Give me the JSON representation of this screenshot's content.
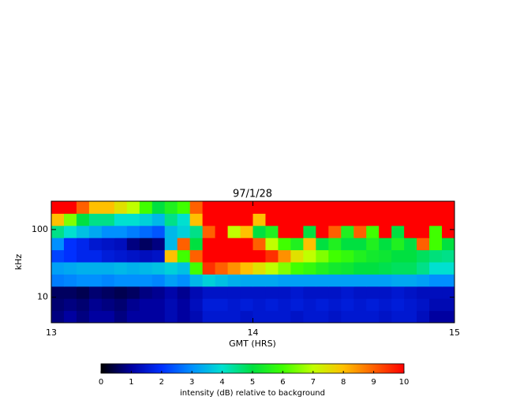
{
  "chart_data": {
    "type": "spectrogram",
    "title": "97/1/28",
    "xlabel": "GMT (HRS)",
    "ylabel": "kHz",
    "xlim": [
      13,
      15
    ],
    "xticks": [
      13,
      14,
      15
    ],
    "ylim": [
      4.2,
      262
    ],
    "yticks": [
      10,
      100
    ],
    "yscale": "log",
    "colormap": [
      "#000000",
      "#0000a0",
      "#0030ff",
      "#0090ff",
      "#00e0d0",
      "#00e040",
      "#40ff00",
      "#c0ff00",
      "#ffc000",
      "#ff6000",
      "#ff0000"
    ],
    "colorbar_label": "intensity (dB) relative to background",
    "colorbar_lim": [
      0,
      10
    ],
    "colorbar_ticks": [
      0,
      1,
      2,
      3,
      4,
      5,
      6,
      7,
      8,
      9,
      10
    ],
    "values": [
      [
        0.8,
        1,
        0.8,
        1,
        1,
        0.8,
        1,
        1,
        1,
        1.2,
        1,
        1.2,
        1.5,
        1.5,
        1.5,
        1.4,
        1.5,
        1.5,
        1.5,
        1.4,
        1.5,
        1.5,
        1.4,
        1.5,
        1.5,
        1.5,
        1.4,
        1.5,
        1.5,
        1.3,
        1,
        1
      ],
      [
        0.7,
        0.8,
        0.7,
        0.9,
        0.8,
        0.7,
        0.9,
        1,
        1,
        1.2,
        1,
        1.3,
        1.6,
        1.6,
        1.5,
        1.6,
        1.5,
        1.6,
        1.5,
        1.6,
        1.5,
        1.6,
        1.5,
        1.6,
        1.5,
        1.6,
        1.5,
        1.6,
        1.5,
        1.4,
        1.2,
        1.2
      ],
      [
        0.6,
        0.6,
        0.5,
        0.7,
        0.6,
        0.5,
        0.6,
        0.8,
        0.9,
        1.1,
        0.9,
        1.2,
        1.4,
        1.4,
        1.4,
        1.4,
        1.4,
        1.4,
        1.4,
        1.5,
        1.4,
        1.4,
        1.4,
        1.5,
        1.4,
        1.4,
        1.4,
        1.5,
        1.4,
        1.3,
        1.3,
        1.3
      ],
      [
        2.8,
        2.9,
        3,
        3,
        2.9,
        3,
        3,
        3,
        2.9,
        3.2,
        3,
        3.5,
        3.8,
        3.6,
        3.4,
        3.3,
        3.3,
        3.3,
        3.2,
        3.2,
        3.2,
        3.2,
        3.2,
        3.2,
        3.2,
        3.2,
        3.2,
        3.3,
        3.3,
        3.2,
        3,
        3
      ],
      [
        3.2,
        3.3,
        3.4,
        3.4,
        3.4,
        3.5,
        3.4,
        3.5,
        3.6,
        3.8,
        3.6,
        6,
        9.5,
        9,
        8.5,
        8,
        7.5,
        7,
        6.5,
        6,
        5.8,
        5.5,
        5.3,
        5.2,
        5,
        5,
        4.9,
        4.8,
        4.8,
        4.5,
        4,
        4
      ],
      [
        2.2,
        2,
        1.8,
        1.8,
        1.6,
        1.5,
        1.4,
        1.3,
        1.4,
        8,
        6,
        9,
        10,
        10,
        10,
        10,
        10,
        9.5,
        8.5,
        7.5,
        7,
        6.5,
        6,
        5.8,
        5.5,
        5.3,
        5.2,
        5,
        5,
        4.8,
        4.6,
        4.5
      ],
      [
        3,
        2,
        1.8,
        1.5,
        1.4,
        1.3,
        0.8,
        0.6,
        0.8,
        3.5,
        9,
        5,
        10,
        10,
        10,
        10,
        9,
        7,
        6,
        5.5,
        8,
        5,
        5.5,
        5,
        5,
        5.5,
        5,
        5.5,
        5,
        9,
        6,
        5
      ],
      [
        4.5,
        4,
        3.6,
        3.3,
        3,
        3,
        2.8,
        2.6,
        2.4,
        3.5,
        3.8,
        4.5,
        9,
        10,
        7,
        8,
        5,
        5.5,
        10,
        10,
        5,
        10,
        9,
        5.5,
        9,
        6,
        10,
        5,
        10,
        10,
        6,
        10
      ],
      [
        8,
        6.5,
        5,
        4.5,
        4.5,
        4,
        4,
        3.8,
        3.5,
        4.5,
        4,
        8,
        10,
        10,
        10,
        10,
        8,
        10,
        10,
        10,
        10,
        10,
        10,
        10,
        10,
        10,
        10,
        10,
        10,
        10,
        10,
        10
      ],
      [
        10,
        10,
        9,
        8,
        8,
        7.5,
        7,
        6,
        5,
        5.5,
        6,
        9,
        10,
        10,
        10,
        10,
        10,
        10,
        10,
        10,
        10,
        10,
        10,
        10,
        10,
        10,
        10,
        10,
        10,
        10,
        10,
        10
      ]
    ]
  }
}
